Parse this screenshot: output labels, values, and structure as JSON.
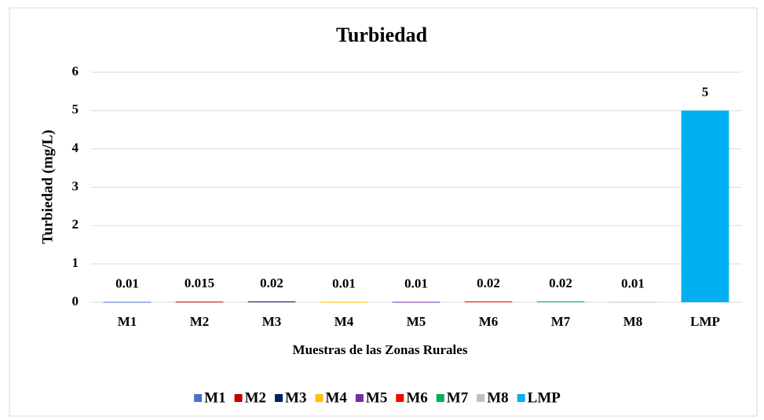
{
  "chart_data": {
    "type": "bar",
    "title": "Turbiedad",
    "x_label": "Muestras de las Zonas Rurales",
    "y_label": "Turbiedad  (mg/L)",
    "categories": [
      "M1",
      "M2",
      "M3",
      "M4",
      "M5",
      "M6",
      "M7",
      "M8",
      "LMP"
    ],
    "values": [
      0.01,
      0.015,
      0.02,
      0.01,
      0.01,
      0.02,
      0.02,
      0.01,
      5
    ],
    "colors": [
      "#4472c4",
      "#c00000",
      "#002060",
      "#ffc000",
      "#7030a0",
      "#ff0000",
      "#00b050",
      "#bfbfbf",
      "#00b0f0"
    ],
    "ylim": [
      0,
      6
    ],
    "yticks": [
      0,
      1,
      2,
      3,
      4,
      5,
      6
    ],
    "grid": true,
    "legend": "bottom"
  }
}
